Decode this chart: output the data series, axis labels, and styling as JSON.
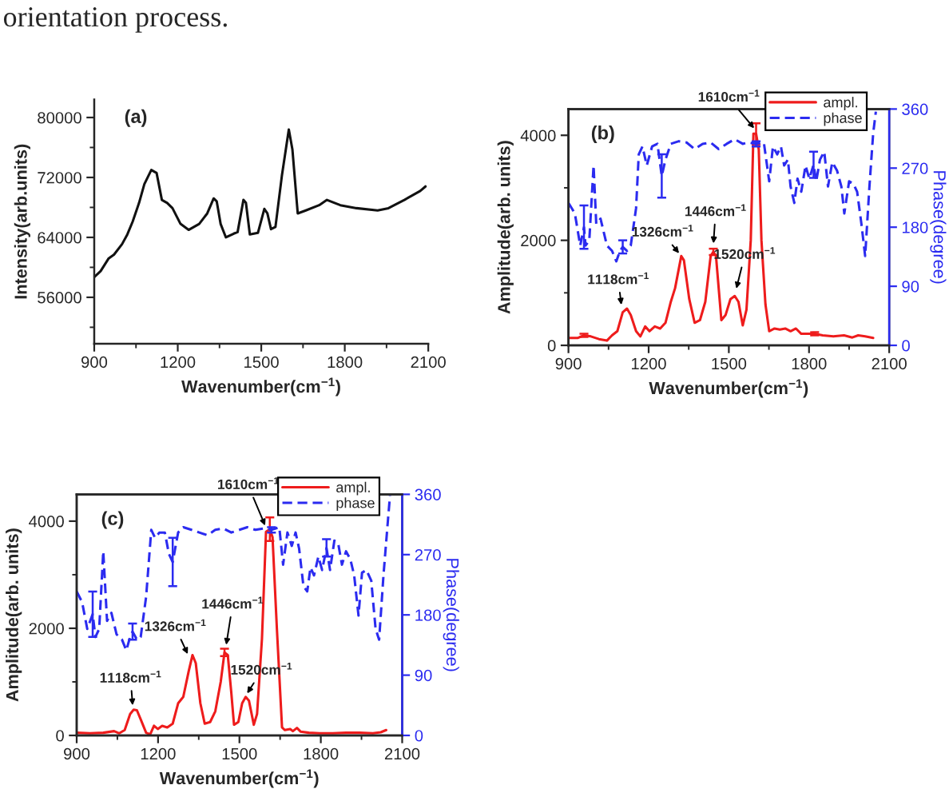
{
  "chart_data": [
    {
      "type": "line",
      "annotations": [
        "(a)",
        "orientation process."
      ],
      "xlabel": "Wavenumber(cm$^{−1}$)",
      "ylabel": "Intensity(arb.units)",
      "xlim": [
        900,
        2100
      ],
      "xticks": [
        900,
        {
          "value": 1050,
          "label": null
        },
        1200,
        {
          "value": 1350,
          "label": null
        },
        1500,
        {
          "value": 1650,
          "label": null
        },
        1800,
        {
          "value": 1950,
          "label": null
        },
        2100
      ],
      "ylim": [
        49800,
        82400
      ],
      "yticks": [
        {
          "value": 52000,
          "label": null
        },
        56000,
        {
          "value": 60000,
          "label": null
        },
        64000,
        {
          "value": 68000,
          "label": null
        },
        72000,
        {
          "value": 76000,
          "label": null
        },
        80000
      ],
      "series": [
        {
          "color": "#111111",
          "line_style": "solid",
          "x": [
            900,
            923,
            952,
            971,
            1000,
            1019,
            1038,
            1061,
            1080,
            1105,
            1124,
            1143,
            1162,
            1181,
            1210,
            1239,
            1258,
            1277,
            1306,
            1329,
            1340,
            1354,
            1373,
            1401,
            1415,
            1436,
            1445,
            1459,
            1488,
            1511,
            1522,
            1535,
            1551,
            1574,
            1599,
            1612,
            1631,
            1660,
            1708,
            1736,
            1784,
            1842,
            1918,
            1957,
            2014,
            2071,
            2090
          ],
          "values": [
            58700,
            59500,
            61200,
            61700,
            63100,
            64400,
            66100,
            68600,
            71100,
            73000,
            72600,
            69000,
            68600,
            67900,
            65800,
            65000,
            65400,
            65800,
            67200,
            69200,
            68800,
            65800,
            64000,
            64500,
            64700,
            69000,
            68600,
            64400,
            64600,
            67800,
            67200,
            65100,
            65400,
            72200,
            78400,
            75700,
            67200,
            67600,
            68300,
            69000,
            68300,
            67900,
            67600,
            67900,
            69000,
            70200,
            70800
          ]
        }
      ]
    },
    {
      "type": "line",
      "legend": "top right",
      "xlabel": "Wavenumber(cm$^{−1}$)",
      "ylabel": "Amplitude(arb. units)",
      "y2label": "Phase(degree)",
      "annotations": [
        "(b)",
        {
          "text": "1610cm$^{−1}$",
          "x": 1600,
          "y": 4100
        },
        {
          "text": "1446cm$^{−1}$",
          "x": 1442,
          "y": 1900
        },
        {
          "text": "1326cm$^{−1}$",
          "x": 1319,
          "y": 1720
        },
        {
          "text": "1520cm$^{−1}$",
          "x": 1526,
          "y": 1040
        },
        {
          "text": "1118cm$^{−1}$",
          "x": 1099,
          "y": 730
        }
      ],
      "xlim": [
        900,
        2100
      ],
      "xticks": [
        900,
        {
          "value": 1050,
          "label": null
        },
        1200,
        {
          "value": 1350,
          "label": null
        },
        1500,
        {
          "value": 1650,
          "label": null
        },
        1800,
        {
          "value": 1950,
          "label": null
        },
        2100
      ],
      "ylim": [
        0,
        4500
      ],
      "yticks": [
        0,
        {
          "value": 1000,
          "label": null
        },
        2000,
        {
          "value": 3000,
          "label": null
        },
        4000
      ],
      "y2lim": [
        0,
        360
      ],
      "y2ticks": [
        0,
        90,
        180,
        270,
        360
      ],
      "series": [
        {
          "name": "ampl.",
          "color": "#ee1c1c",
          "line_style": "solid",
          "x": [
            900,
            934,
            958,
            984,
            1014,
            1044,
            1063,
            1083,
            1103,
            1119,
            1133,
            1153,
            1169,
            1187,
            1203,
            1223,
            1243,
            1263,
            1283,
            1299,
            1322,
            1332,
            1352,
            1372,
            1392,
            1412,
            1432,
            1442,
            1452,
            1472,
            1488,
            1506,
            1522,
            1536,
            1552,
            1566,
            1582,
            1592,
            1602,
            1612,
            1622,
            1637,
            1651,
            1671,
            1691,
            1711,
            1731,
            1751,
            1771,
            1801,
            1821,
            1851,
            1891,
            1931,
            1962,
            1984,
            2010,
            2040
          ],
          "values": [
            140,
            140,
            190,
            170,
            120,
            90,
            190,
            270,
            630,
            700,
            580,
            270,
            170,
            360,
            270,
            360,
            320,
            430,
            830,
            1090,
            1700,
            1620,
            880,
            430,
            480,
            830,
            1700,
            1780,
            1700,
            480,
            580,
            880,
            940,
            830,
            380,
            680,
            2000,
            4030,
            4030,
            3730,
            2000,
            780,
            270,
            320,
            300,
            320,
            270,
            320,
            220,
            220,
            220,
            190,
            170,
            190,
            150,
            190,
            170,
            140
          ],
          "errors": [
            null,
            null,
            30,
            null,
            null,
            null,
            null,
            null,
            null,
            null,
            null,
            null,
            null,
            null,
            null,
            null,
            null,
            null,
            null,
            null,
            null,
            null,
            null,
            null,
            null,
            null,
            null,
            60,
            null,
            null,
            null,
            null,
            null,
            null,
            null,
            null,
            null,
            null,
            200,
            null,
            null,
            null,
            null,
            null,
            null,
            null,
            null,
            null,
            null,
            null,
            30,
            null,
            null,
            null,
            null,
            null,
            null,
            null
          ]
        },
        {
          "name": "phase",
          "color": "#2b2bf0",
          "axis": "y2",
          "line_style": "dashed",
          "x": [
            900,
            924,
            944,
            958,
            964,
            978,
            994,
            1004,
            1020,
            1044,
            1063,
            1079,
            1093,
            1103,
            1119,
            1133,
            1153,
            1163,
            1177,
            1193,
            1213,
            1233,
            1249,
            1263,
            1283,
            1313,
            1342,
            1372,
            1402,
            1432,
            1462,
            1492,
            1522,
            1552,
            1572,
            1602,
            1631,
            1651,
            1665,
            1681,
            1695,
            1707,
            1721,
            1731,
            1745,
            1757,
            1771,
            1787,
            1801,
            1817,
            1827,
            1841,
            1857,
            1871,
            1887,
            1905,
            1921,
            1932,
            1950,
            1966,
            1980,
            1996,
            2010,
            2026,
            2040,
            2050
          ],
          "values": [
            217,
            201,
            152,
            180,
            152,
            160,
            274,
            185,
            193,
            152,
            144,
            128,
            144,
            150,
            144,
            152,
            209,
            291,
            303,
            274,
            303,
            307,
            258,
            283,
            307,
            311,
            309,
            299,
            307,
            309,
            299,
            307,
            314,
            307,
            309,
            307,
            309,
            250,
            303,
            291,
            303,
            274,
            283,
            242,
            217,
            254,
            234,
            274,
            254,
            275,
            250,
            283,
            295,
            242,
            279,
            266,
            242,
            201,
            250,
            246,
            234,
            185,
            136,
            242,
            323,
            356
          ],
          "errors": [
            null,
            null,
            null,
            33,
            null,
            null,
            null,
            null,
            null,
            null,
            null,
            null,
            null,
            10,
            null,
            null,
            null,
            null,
            null,
            null,
            null,
            null,
            33,
            null,
            null,
            null,
            null,
            null,
            null,
            null,
            null,
            null,
            null,
            null,
            null,
            4,
            null,
            null,
            null,
            null,
            null,
            null,
            null,
            null,
            null,
            null,
            null,
            null,
            null,
            20,
            null,
            null,
            null,
            null,
            null,
            null,
            null,
            null,
            null,
            null,
            null,
            null,
            null,
            null,
            null,
            null
          ]
        }
      ]
    },
    {
      "type": "line",
      "legend": "top right",
      "xlabel": "Wavenumber(cm$^{−1}$)",
      "ylabel": "Amplitude(arb. units)",
      "y2label": "Phase(degree)",
      "annotations": [
        "(c)",
        {
          "text": "1610cm$^{−1}$",
          "x": 1598,
          "y": 3880
        },
        {
          "text": "1446cm$^{−1}$",
          "x": 1450,
          "y": 1650
        },
        {
          "text": "1326cm$^{−1}$",
          "x": 1313,
          "y": 1480
        },
        {
          "text": "1520cm$^{−1}$",
          "x": 1524,
          "y": 750
        },
        {
          "text": "1118cm$^{−1}$",
          "x": 1107,
          "y": 520
        }
      ],
      "xlim": [
        900,
        2100
      ],
      "xticks": [
        900,
        {
          "value": 1050,
          "label": null
        },
        1200,
        {
          "value": 1350,
          "label": null
        },
        1500,
        {
          "value": 1650,
          "label": null
        },
        1800,
        {
          "value": 1950,
          "label": null
        },
        2100
      ],
      "ylim": [
        0,
        4500
      ],
      "yticks": [
        0,
        {
          "value": 1000,
          "label": null
        },
        2000,
        {
          "value": 3000,
          "label": null
        },
        4000
      ],
      "y2lim": [
        0,
        360
      ],
      "y2ticks": [
        0,
        90,
        180,
        270,
        360
      ],
      "series": [
        {
          "name": "ampl.",
          "color": "#ee1c1c",
          "line_style": "solid",
          "x": [
            900,
            949,
            998,
            1038,
            1057,
            1077,
            1097,
            1110,
            1122,
            1136,
            1156,
            1171,
            1185,
            1199,
            1215,
            1234,
            1254,
            1274,
            1293,
            1313,
            1327,
            1339,
            1356,
            1372,
            1392,
            1411,
            1431,
            1445,
            1457,
            1470,
            1480,
            1496,
            1510,
            1523,
            1535,
            1553,
            1565,
            1583,
            1598,
            1612,
            1622,
            1638,
            1657,
            1667,
            1687,
            1697,
            1712,
            1726,
            1756,
            1795,
            1844,
            1893,
            1943,
            1992,
            2021,
            2041
          ],
          "values": [
            50,
            40,
            50,
            80,
            40,
            100,
            400,
            480,
            470,
            300,
            50,
            20,
            180,
            120,
            180,
            150,
            220,
            600,
            720,
            1200,
            1500,
            1350,
            600,
            220,
            250,
            450,
            1000,
            1550,
            1500,
            800,
            200,
            250,
            600,
            720,
            650,
            200,
            400,
            1800,
            3800,
            3850,
            3700,
            2000,
            150,
            100,
            120,
            80,
            140,
            70,
            50,
            40,
            40,
            50,
            50,
            40,
            60,
            100
          ],
          "errors": [
            null,
            null,
            null,
            null,
            null,
            null,
            null,
            null,
            null,
            null,
            null,
            null,
            null,
            null,
            null,
            null,
            null,
            null,
            null,
            null,
            null,
            null,
            null,
            null,
            null,
            null,
            null,
            70,
            null,
            null,
            null,
            null,
            null,
            null,
            null,
            null,
            null,
            null,
            null,
            220,
            null,
            null,
            null,
            null,
            null,
            null,
            null,
            null,
            null,
            null,
            null,
            null,
            null,
            null,
            null,
            null
          ]
        },
        {
          "name": "phase",
          "color": "#2b2bf0",
          "axis": "y2",
          "line_style": "dashed",
          "x": [
            900,
            920,
            939,
            959,
            969,
            983,
            998,
            1012,
            1028,
            1047,
            1067,
            1083,
            1097,
            1106,
            1122,
            1136,
            1156,
            1175,
            1189,
            1205,
            1225,
            1240,
            1254,
            1274,
            1293,
            1323,
            1352,
            1382,
            1411,
            1441,
            1470,
            1500,
            1529,
            1559,
            1589,
            1618,
            1647,
            1661,
            1677,
            1693,
            1707,
            1720,
            1736,
            1750,
            1762,
            1775,
            1791,
            1805,
            1821,
            1834,
            1850,
            1864,
            1878,
            1893,
            1909,
            1923,
            1939,
            1952,
            1968,
            1986,
            2002,
            2015,
            2031,
            2047,
            2055
          ],
          "values": [
            215,
            199,
            159,
            181,
            147,
            159,
            275,
            171,
            183,
            151,
            143,
            127,
            147,
            155,
            143,
            147,
            207,
            307,
            295,
            303,
            303,
            271,
            259,
            303,
            311,
            307,
            303,
            299,
            307,
            309,
            303,
            307,
            311,
            307,
            309,
            307,
            311,
            255,
            303,
            283,
            303,
            279,
            223,
            215,
            251,
            239,
            267,
            247,
            280,
            247,
            291,
            287,
            255,
            275,
            263,
            239,
            179,
            243,
            247,
            231,
            159,
            143,
            239,
            319,
            358
          ],
          "errors": [
            null,
            null,
            null,
            34,
            null,
            null,
            null,
            null,
            null,
            null,
            null,
            null,
            null,
            12,
            null,
            null,
            null,
            null,
            null,
            null,
            null,
            null,
            36,
            null,
            null,
            null,
            null,
            null,
            null,
            null,
            null,
            null,
            null,
            null,
            null,
            4,
            null,
            null,
            null,
            null,
            null,
            null,
            null,
            null,
            null,
            null,
            null,
            null,
            13,
            null,
            null,
            null,
            null,
            null,
            null,
            null,
            null,
            null,
            null,
            null,
            null,
            null,
            null,
            null,
            null
          ]
        }
      ]
    }
  ]
}
